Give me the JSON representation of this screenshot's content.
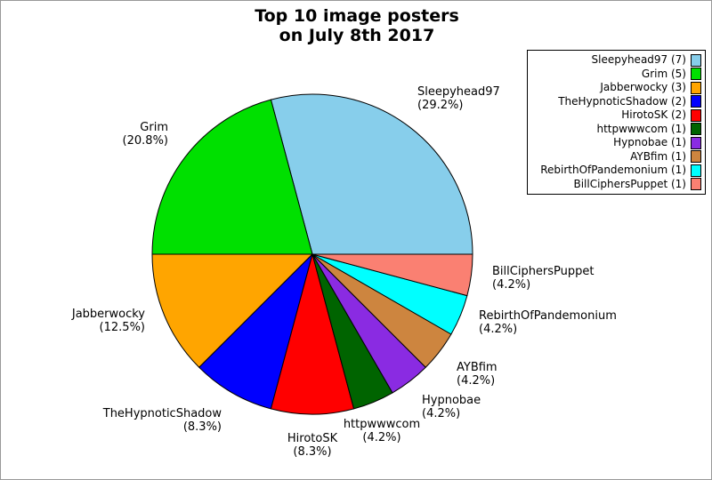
{
  "figure": {
    "title_line1": "Top 10 image posters",
    "title_line2": "on July 8th 2017",
    "background_color": "#ffffff",
    "frame_border_color": "#999999"
  },
  "chart_data": {
    "type": "pie",
    "title": "Top 10 image posters on July 8th 2017",
    "total": 24,
    "start_angle_deg": 0,
    "direction": "counterclockwise",
    "legend_position": "upper right",
    "series": [
      {
        "label": "Sleepyhead97",
        "value": 7,
        "pct": 29.2,
        "pct_label": "(29.2%)",
        "legend_label": "Sleepyhead97 (7)",
        "color": "#87CEEB"
      },
      {
        "label": "Grim",
        "value": 5,
        "pct": 20.8,
        "pct_label": "(20.8%)",
        "legend_label": "Grim (5)",
        "color": "#00E000"
      },
      {
        "label": "Jabberwocky",
        "value": 3,
        "pct": 12.5,
        "pct_label": "(12.5%)",
        "legend_label": "Jabberwocky (3)",
        "color": "#FFA500"
      },
      {
        "label": "TheHypnoticShadow",
        "value": 2,
        "pct": 8.3,
        "pct_label": "(8.3%)",
        "legend_label": "TheHypnoticShadow (2)",
        "color": "#0000FF"
      },
      {
        "label": "HirotoSK",
        "value": 2,
        "pct": 8.3,
        "pct_label": "(8.3%)",
        "legend_label": "HirotoSK (2)",
        "color": "#FF0000"
      },
      {
        "label": "httpwwwcom",
        "value": 1,
        "pct": 4.2,
        "pct_label": "(4.2%)",
        "legend_label": "httpwwwcom (1)",
        "color": "#006400"
      },
      {
        "label": "Hypnobae",
        "value": 1,
        "pct": 4.2,
        "pct_label": "(4.2%)",
        "legend_label": "Hypnobae (1)",
        "color": "#8A2BE2"
      },
      {
        "label": "AYBfim",
        "value": 1,
        "pct": 4.2,
        "pct_label": "(4.2%)",
        "legend_label": "AYBfim (1)",
        "color": "#CD853F"
      },
      {
        "label": "RebirthOfPandemonium",
        "value": 1,
        "pct": 4.2,
        "pct_label": "(4.2%)",
        "legend_label": "RebirthOfPandemonium (1)",
        "color": "#00FFFF"
      },
      {
        "label": "BillCiphersPuppet",
        "value": 1,
        "pct": 4.2,
        "pct_label": "(4.2%)",
        "legend_label": "BillCiphersPuppet (1)",
        "color": "#FA8072"
      }
    ]
  }
}
